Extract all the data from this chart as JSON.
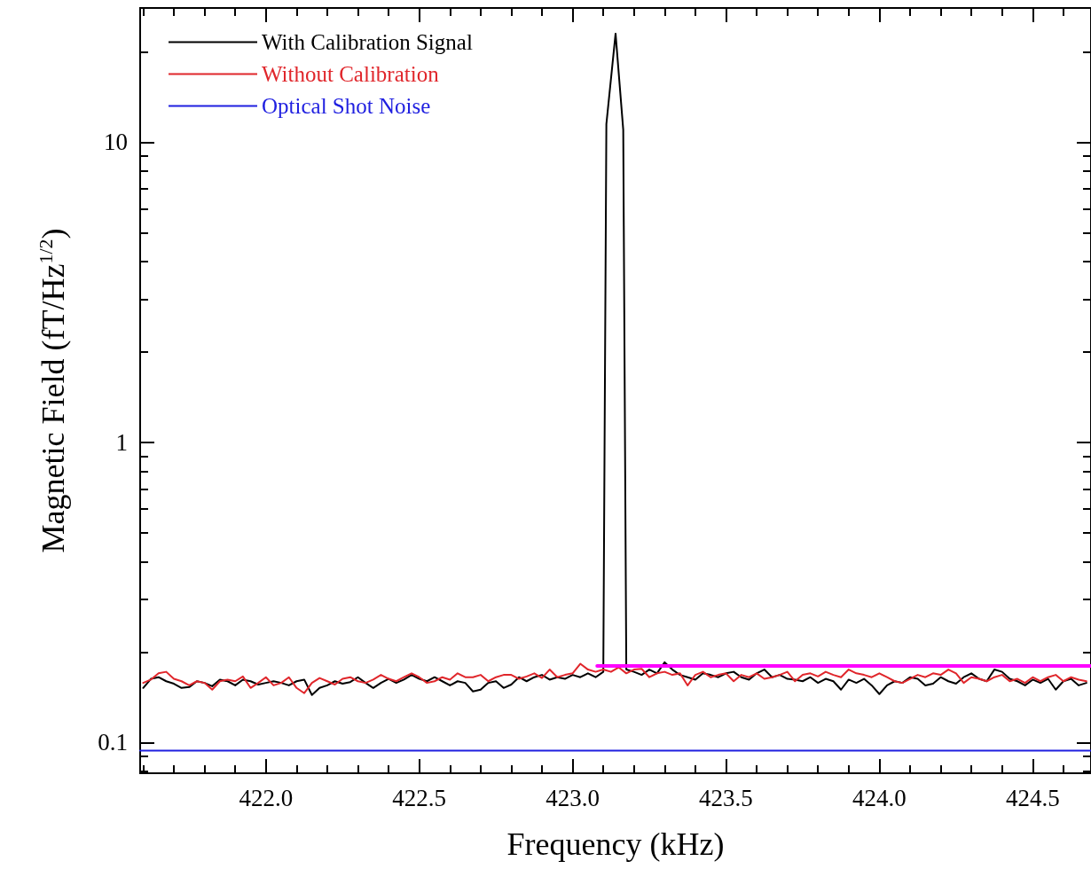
{
  "chart_data": {
    "type": "line",
    "xlabel": "Frequency (kHz)",
    "ylabel": "Magnetic Field (fT/Hz$^{1/2}$)",
    "log": "y",
    "xlim": [
      421.59,
      424.69
    ],
    "ylim": [
      0.079,
      28
    ],
    "xticks": [
      {
        "value": 422,
        "label": "422.0"
      },
      422.5,
      {
        "value": 423,
        "label": "423.0"
      },
      423.5,
      {
        "value": 424,
        "label": "424.0"
      },
      424.5
    ],
    "yticks": [
      0.1,
      1,
      10
    ],
    "grid": false,
    "legend": "top left",
    "marker": "none",
    "line_style": "solid",
    "series": [
      {
        "name": "With Calibration Signal",
        "color": "#000000",
        "x": [
          421.6,
          421.625,
          421.65,
          421.675,
          421.7,
          421.725,
          421.75,
          421.775,
          421.8,
          421.825,
          421.85,
          421.875,
          421.9,
          421.925,
          421.95,
          421.975,
          422,
          422.025,
          422.05,
          422.075,
          422.1,
          422.125,
          422.15,
          422.175,
          422.2,
          422.225,
          422.25,
          422.275,
          422.3,
          422.325,
          422.35,
          422.375,
          422.4,
          422.425,
          422.45,
          422.475,
          422.5,
          422.525,
          422.55,
          422.575,
          422.6,
          422.625,
          422.65,
          422.675,
          422.7,
          422.725,
          422.75,
          422.775,
          422.8,
          422.825,
          422.85,
          422.875,
          422.9,
          422.925,
          422.95,
          422.975,
          423,
          423.025,
          423.05,
          423.075,
          423.1,
          423.11,
          423.14,
          423.165,
          423.175,
          423.2,
          423.225,
          423.25,
          423.275,
          423.3,
          423.325,
          423.35,
          423.375,
          423.4,
          423.425,
          423.45,
          423.475,
          423.5,
          423.525,
          423.55,
          423.575,
          423.6,
          423.625,
          423.65,
          423.675,
          423.7,
          423.725,
          423.75,
          423.775,
          423.8,
          423.825,
          423.85,
          423.875,
          423.9,
          423.925,
          423.95,
          423.975,
          424,
          424.025,
          424.05,
          424.075,
          424.1,
          424.125,
          424.15,
          424.175,
          424.2,
          424.225,
          424.25,
          424.275,
          424.3,
          424.325,
          424.35,
          424.375,
          424.4,
          424.425,
          424.45,
          424.475,
          424.5,
          424.525,
          424.55,
          424.575,
          424.6,
          424.625,
          424.65,
          424.675
        ],
        "values": [
          0.152,
          0.163,
          0.165,
          0.16,
          0.157,
          0.152,
          0.153,
          0.16,
          0.158,
          0.154,
          0.162,
          0.16,
          0.155,
          0.162,
          0.16,
          0.156,
          0.158,
          0.16,
          0.158,
          0.155,
          0.16,
          0.162,
          0.144,
          0.152,
          0.155,
          0.16,
          0.157,
          0.159,
          0.165,
          0.158,
          0.152,
          0.158,
          0.163,
          0.158,
          0.162,
          0.168,
          0.163,
          0.16,
          0.165,
          0.16,
          0.155,
          0.16,
          0.158,
          0.148,
          0.15,
          0.158,
          0.16,
          0.152,
          0.156,
          0.165,
          0.16,
          0.165,
          0.168,
          0.162,
          0.165,
          0.163,
          0.168,
          0.165,
          0.17,
          0.165,
          0.172,
          11.5,
          23,
          11,
          0.175,
          0.172,
          0.168,
          0.175,
          0.17,
          0.185,
          0.175,
          0.168,
          0.165,
          0.162,
          0.17,
          0.168,
          0.165,
          0.17,
          0.172,
          0.165,
          0.162,
          0.17,
          0.175,
          0.165,
          0.168,
          0.163,
          0.162,
          0.16,
          0.165,
          0.158,
          0.163,
          0.16,
          0.15,
          0.162,
          0.158,
          0.163,
          0.155,
          0.145,
          0.155,
          0.16,
          0.158,
          0.165,
          0.163,
          0.155,
          0.157,
          0.165,
          0.16,
          0.157,
          0.165,
          0.17,
          0.163,
          0.16,
          0.175,
          0.172,
          0.163,
          0.16,
          0.155,
          0.162,
          0.158,
          0.163,
          0.15,
          0.16,
          0.163,
          0.155,
          0.158
        ]
      },
      {
        "name": "Without Calibration",
        "color": "#e0262b",
        "x": [
          421.6,
          421.625,
          421.65,
          421.675,
          421.7,
          421.725,
          421.75,
          421.775,
          421.8,
          421.825,
          421.85,
          421.875,
          421.9,
          421.925,
          421.95,
          421.975,
          422,
          422.025,
          422.05,
          422.075,
          422.1,
          422.125,
          422.15,
          422.175,
          422.2,
          422.225,
          422.25,
          422.275,
          422.3,
          422.325,
          422.35,
          422.375,
          422.4,
          422.425,
          422.45,
          422.475,
          422.5,
          422.525,
          422.55,
          422.575,
          422.6,
          422.625,
          422.65,
          422.675,
          422.7,
          422.725,
          422.75,
          422.775,
          422.8,
          422.825,
          422.85,
          422.875,
          422.9,
          422.925,
          422.95,
          422.975,
          423,
          423.025,
          423.05,
          423.075,
          423.1,
          423.125,
          423.15,
          423.175,
          423.2,
          423.225,
          423.25,
          423.275,
          423.3,
          423.325,
          423.35,
          423.375,
          423.4,
          423.425,
          423.45,
          423.475,
          423.5,
          423.525,
          423.55,
          423.575,
          423.6,
          423.625,
          423.65,
          423.675,
          423.7,
          423.725,
          423.75,
          423.775,
          423.8,
          423.825,
          423.85,
          423.875,
          423.9,
          423.925,
          423.95,
          423.975,
          424,
          424.025,
          424.05,
          424.075,
          424.1,
          424.125,
          424.15,
          424.175,
          424.2,
          424.225,
          424.25,
          424.275,
          424.3,
          424.325,
          424.35,
          424.375,
          424.4,
          424.425,
          424.45,
          424.475,
          424.5,
          424.525,
          424.55,
          424.575,
          424.6,
          424.625,
          424.65,
          424.675
        ],
        "values": [
          0.158,
          0.162,
          0.17,
          0.172,
          0.163,
          0.16,
          0.155,
          0.16,
          0.158,
          0.15,
          0.16,
          0.162,
          0.16,
          0.166,
          0.152,
          0.158,
          0.165,
          0.155,
          0.158,
          0.165,
          0.152,
          0.146,
          0.158,
          0.164,
          0.16,
          0.156,
          0.163,
          0.165,
          0.16,
          0.158,
          0.162,
          0.168,
          0.163,
          0.16,
          0.165,
          0.17,
          0.165,
          0.158,
          0.16,
          0.165,
          0.162,
          0.17,
          0.165,
          0.165,
          0.168,
          0.16,
          0.165,
          0.168,
          0.168,
          0.163,
          0.166,
          0.17,
          0.164,
          0.175,
          0.165,
          0.168,
          0.17,
          0.183,
          0.175,
          0.172,
          0.175,
          0.172,
          0.178,
          0.17,
          0.175,
          0.176,
          0.165,
          0.17,
          0.172,
          0.168,
          0.17,
          0.155,
          0.168,
          0.172,
          0.165,
          0.168,
          0.17,
          0.16,
          0.168,
          0.165,
          0.17,
          0.163,
          0.165,
          0.168,
          0.172,
          0.16,
          0.168,
          0.17,
          0.166,
          0.172,
          0.168,
          0.165,
          0.175,
          0.17,
          0.168,
          0.165,
          0.17,
          0.165,
          0.16,
          0.158,
          0.163,
          0.168,
          0.165,
          0.17,
          0.168,
          0.175,
          0.17,
          0.158,
          0.165,
          0.163,
          0.16,
          0.165,
          0.168,
          0.16,
          0.163,
          0.158,
          0.165,
          0.16,
          0.165,
          0.168,
          0.16,
          0.165,
          0.162,
          0.16
        ]
      },
      {
        "name": "Optical Shot Noise",
        "color": "#1f1fe0",
        "x": [
          421.59,
          424.69
        ],
        "values": [
          0.094,
          0.094
        ]
      },
      {
        "color": "#ff00ff",
        "x": [
          423.08,
          424.69
        ],
        "values": [
          0.18,
          0.18
        ]
      }
    ]
  }
}
